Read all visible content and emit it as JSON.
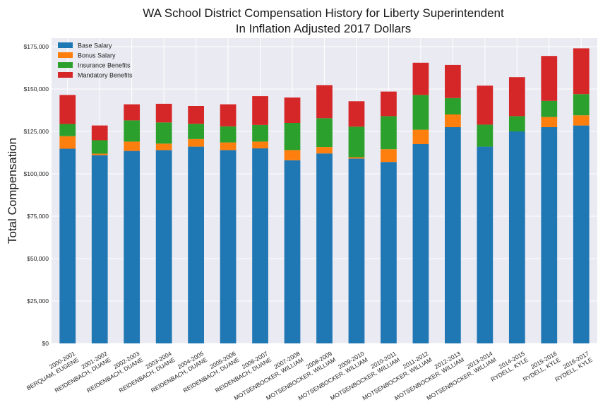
{
  "chart_data": {
    "type": "bar",
    "stacked": true,
    "title": "WA School District Compensation History for Liberty Superintendent",
    "subtitle": "In Inflation Adjusted 2017 Dollars",
    "xlabel": "",
    "ylabel": "Total Compensation",
    "ylim": [
      0,
      180000
    ],
    "yticks": [
      0,
      25000,
      50000,
      75000,
      100000,
      125000,
      150000,
      175000
    ],
    "ytick_labels": [
      "$0",
      "$25,000",
      "$50,000",
      "$75,000",
      "$100,000",
      "$125,000",
      "$150,000",
      "$175,000"
    ],
    "grid": true,
    "legend_position": "top-left",
    "categories": [
      "2000-2001 BERQUAM, EUGENE",
      "2001-2002 REIDENBACH, DUANE",
      "2002-2003 REIDENBACH, DUANE",
      "2003-2004 REIDENBACH, DUANE",
      "2004-2005 REIDENBACH, DUANE",
      "2005-2006 REIDENBACH, DUANE",
      "2006-2007 REIDENBACH, DUANE",
      "2007-2008 MOTSENBOCKER, WILLIAM",
      "2008-2009 MOTSENBOCKER, WILLIAM",
      "2009-2010 MOTSENBOCKER, WILLIAM",
      "2010-2011 MOTSENBOCKER, WILLIAM",
      "2011-2012 MOTSENBOCKER, WILLIAM",
      "2012-2013 MOTSENBOCKER, WILLIAM",
      "2013-2014 MOTSENBOCKER, WILLIAM",
      "2014-2015 RYDELL, KYLE",
      "2015-2016 RYDELL, KYLE",
      "2016-2017 RYDELL, KYLE"
    ],
    "category_lines": [
      [
        "2000-2001",
        "BERQUAM, EUGENE"
      ],
      [
        "2001-2002",
        "REIDENBACH, DUANE"
      ],
      [
        "2002-2003",
        "REIDENBACH, DUANE"
      ],
      [
        "2003-2004",
        "REIDENBACH, DUANE"
      ],
      [
        "2004-2005",
        "REIDENBACH, DUANE"
      ],
      [
        "2005-2006",
        "REIDENBACH, DUANE"
      ],
      [
        "2006-2007",
        "REIDENBACH, DUANE"
      ],
      [
        "2007-2008",
        "MOTSENBOCKER, WILLIAM"
      ],
      [
        "2008-2009",
        "MOTSENBOCKER, WILLIAM"
      ],
      [
        "2009-2010",
        "MOTSENBOCKER, WILLIAM"
      ],
      [
        "2010-2011",
        "MOTSENBOCKER, WILLIAM"
      ],
      [
        "2011-2012",
        "MOTSENBOCKER, WILLIAM"
      ],
      [
        "2012-2013",
        "MOTSENBOCKER, WILLIAM"
      ],
      [
        "2013-2014",
        "MOTSENBOCKER, WILLIAM"
      ],
      [
        "2014-2015",
        "RYDELL, KYLE"
      ],
      [
        "2015-2016",
        "RYDELL, KYLE"
      ],
      [
        "2016-2017",
        "RYDELL, KYLE"
      ]
    ],
    "series": [
      {
        "name": "Base Salary",
        "color": "#1f77b4",
        "values": [
          114800,
          111000,
          113500,
          114000,
          116000,
          114000,
          115000,
          108000,
          112000,
          109000,
          107000,
          117500,
          127500,
          116000,
          125000,
          127500,
          128500
        ]
      },
      {
        "name": "Bonus Salary",
        "color": "#ff7f0e",
        "values": [
          7400,
          900,
          5500,
          3800,
          4500,
          4500,
          4000,
          6000,
          3800,
          800,
          7500,
          8500,
          7500,
          0,
          0,
          6000,
          6000
        ]
      },
      {
        "name": "Insurance Benefits",
        "color": "#2ca02c",
        "values": [
          7200,
          7900,
          12500,
          12500,
          9000,
          9500,
          9800,
          16000,
          17000,
          18000,
          19500,
          20500,
          9700,
          13000,
          9000,
          9500,
          12500
        ]
      },
      {
        "name": "Mandatory Benefits",
        "color": "#d62728",
        "values": [
          17100,
          8700,
          9500,
          11000,
          10500,
          13000,
          17000,
          15000,
          19500,
          15000,
          14500,
          19000,
          19500,
          23000,
          23000,
          26500,
          27000
        ]
      }
    ]
  }
}
